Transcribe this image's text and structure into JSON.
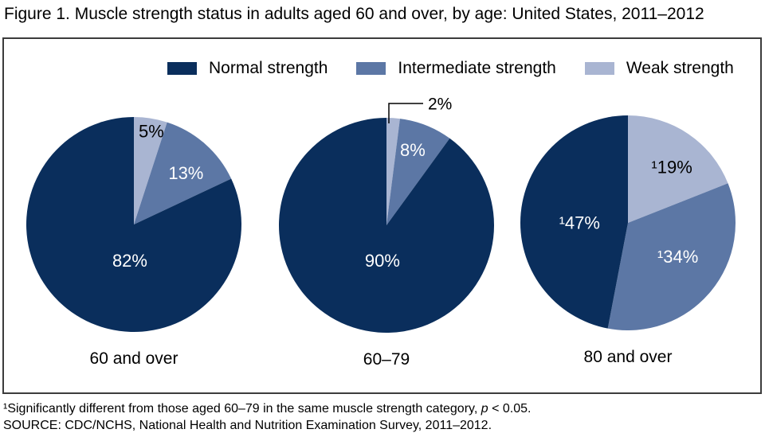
{
  "title": "Figure 1. Muscle strength status in adults aged 60 and over, by age: United States, 2011–2012",
  "legend": [
    {
      "label": "Normal strength",
      "color": "#0a2e5c"
    },
    {
      "label": "Intermediate strength",
      "color": "#5c77a5"
    },
    {
      "label": "Weak strength",
      "color": "#a9b5d2"
    }
  ],
  "chart_data": {
    "type": "pie",
    "title": "Muscle strength status in adults aged 60 and over, by age: United States, 2011–2012",
    "legend_position": "top",
    "categories": [
      "Normal strength",
      "Intermediate strength",
      "Weak strength"
    ],
    "colors": {
      "Normal strength": "#0a2e5c",
      "Intermediate strength": "#5c77a5",
      "Weak strength": "#a9b5d2"
    },
    "slice_order_note": "slices listed clockwise starting at 12 o'clock",
    "pies": [
      {
        "label": "60 and over",
        "slices": [
          {
            "category": "Weak strength",
            "value": 5,
            "display": "5%",
            "text_color": "#000000",
            "la": 10.6,
            "lr": 0.88
          },
          {
            "category": "Intermediate strength",
            "value": 13,
            "display": "13%",
            "text_color": "#ffffff",
            "la": 45.4,
            "lr": 0.68
          },
          {
            "category": "Normal strength",
            "value": 82,
            "display": "82%",
            "text_color": "#ffffff",
            "la": 186.3,
            "lr": 0.34
          }
        ]
      },
      {
        "label": "60–79",
        "slices": [
          {
            "category": "Weak strength",
            "value": 2,
            "display": "2%",
            "text_color": "#000000",
            "callout": true
          },
          {
            "category": "Intermediate strength",
            "value": 8,
            "display": "8%",
            "text_color": "#ffffff",
            "la": 19.2,
            "lr": 0.74
          },
          {
            "category": "Normal strength",
            "value": 90,
            "display": "90%",
            "text_color": "#ffffff",
            "la": 186.5,
            "lr": 0.33
          }
        ]
      },
      {
        "label": "80 and over",
        "slices": [
          {
            "category": "Weak strength",
            "value": 19,
            "display": "¹19%",
            "text_color": "#000000",
            "la": 38.2,
            "lr": 0.66
          },
          {
            "category": "Intermediate strength",
            "value": 34,
            "display": "¹34%",
            "text_color": "#ffffff",
            "la": 124.1,
            "lr": 0.56
          },
          {
            "category": "Normal strength",
            "value": 47,
            "display": "¹47%",
            "text_color": "#ffffff",
            "la": 270,
            "lr": 0.45
          }
        ]
      }
    ]
  },
  "footnotes": {
    "line1_prefix": "¹Significantly different from those aged 60–79 in the same muscle strength category, ",
    "line1_p": "p",
    "line1_suffix": " < 0.05.",
    "source": "SOURCE: CDC/NCHS, National Health and Nutrition Examination Survey, 2011–2012."
  }
}
